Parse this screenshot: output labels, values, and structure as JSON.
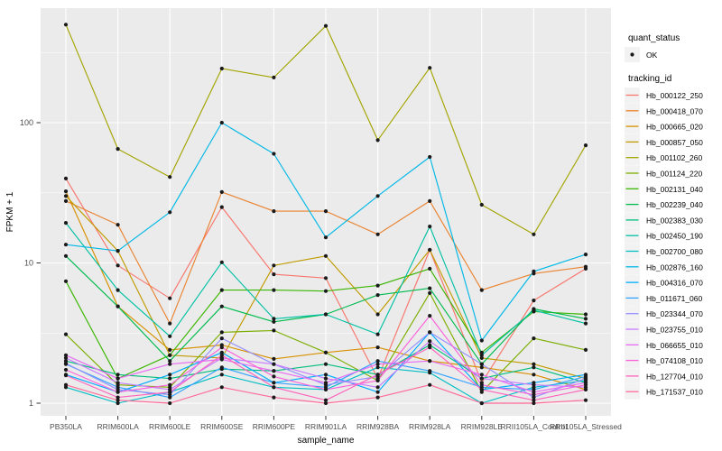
{
  "chart_data": {
    "type": "line",
    "title": "",
    "xlabel": "sample_name",
    "ylabel": "FPKM + 1",
    "y_scale": "log10",
    "y_ticks": [
      "1",
      "10",
      "100"
    ],
    "y_minor_ticks": [
      3.1623,
      31.623,
      316.23
    ],
    "ylim": [
      1,
      656
    ],
    "grid": true,
    "legend_position": "right",
    "panel_background": "#EBEBEB",
    "gridline_color": "#FFFFFF",
    "tick_label_color": "#4D4D4D",
    "axis_title_color": "#000000",
    "point_color": "#1A1A1A",
    "legend_key_background": "#F2F2F2",
    "categories": [
      "PB350LA",
      "RRIM600LA",
      "RRIM600LE",
      "RRIM600SE",
      "RRIM600PE",
      "RRIM901LA",
      "RRIM928BA",
      "RRIM928LA",
      "RRIM928LE",
      "RRII105LA_Control",
      "RRII105LA_Stressed"
    ],
    "legends": [
      {
        "title": "quant_status",
        "type": "point",
        "entries": [
          {
            "label": "OK",
            "color": "#1A1A1A"
          }
        ]
      },
      {
        "title": "tracking_id",
        "type": "line"
      }
    ],
    "series": [
      {
        "name": "Hb_000122_250",
        "color": "#F8766D",
        "values": [
          40,
          9.6,
          5.6,
          25,
          8.3,
          7.8,
          1.5,
          12.4,
          1.4,
          5.4,
          9.1
        ]
      },
      {
        "name": "Hb_000418_070",
        "color": "#EA8331",
        "values": [
          27.6,
          18.7,
          3.7,
          32,
          23.4,
          23.4,
          16,
          27.6,
          6.4,
          8.4,
          9.4
        ]
      },
      {
        "name": "Hb_000665_020",
        "color": "#D89000",
        "values": [
          32.4,
          4.9,
          2.4,
          2.6,
          2.07,
          2.3,
          2.5,
          2.0,
          1.8,
          1.6,
          1.25
        ]
      },
      {
        "name": "Hb_000857_050",
        "color": "#C09B00",
        "values": [
          30,
          12.2,
          2.2,
          2.1,
          9.6,
          11.2,
          4.3,
          12.4,
          2.1,
          1.9,
          1.5
        ]
      },
      {
        "name": "Hb_001102_260",
        "color": "#A3A500",
        "values": [
          500,
          65,
          41,
          243,
          210,
          490,
          75,
          246,
          26,
          16,
          69
        ]
      },
      {
        "name": "Hb_001124_220",
        "color": "#7CAE00",
        "values": [
          3.1,
          1.35,
          1.3,
          3.2,
          3.3,
          2.3,
          1.45,
          6.1,
          1.2,
          2.9,
          2.4
        ]
      },
      {
        "name": "Hb_002131_040",
        "color": "#39B600",
        "values": [
          7.4,
          1.5,
          2.2,
          6.4,
          6.4,
          6.3,
          6.9,
          9.1,
          2.3,
          4.5,
          4.3
        ]
      },
      {
        "name": "Hb_002239_040",
        "color": "#00BB4E",
        "values": [
          11.2,
          4.9,
          2.0,
          4.9,
          3.8,
          4.3,
          5.9,
          6.6,
          1.9,
          4.7,
          4.0
        ]
      },
      {
        "name": "Hb_002383_030",
        "color": "#00BF7D",
        "values": [
          2.0,
          1.6,
          1.5,
          1.75,
          1.7,
          1.9,
          1.6,
          2.6,
          1.5,
          1.8,
          1.4
        ]
      },
      {
        "name": "Hb_002450_190",
        "color": "#00C1A3",
        "values": [
          19.3,
          6.4,
          3.0,
          10.1,
          4.0,
          4.3,
          3.1,
          18.2,
          2.2,
          4.6,
          3.7
        ]
      },
      {
        "name": "Hb_002700_080",
        "color": "#00BFC4",
        "values": [
          1.3,
          1.0,
          1.2,
          1.6,
          1.3,
          1.25,
          1.8,
          1.65,
          1.0,
          1.3,
          1.45
        ]
      },
      {
        "name": "Hb_002876_160",
        "color": "#00B8E7",
        "values": [
          13.5,
          12.2,
          23,
          100,
          60,
          15.2,
          30,
          57,
          2.8,
          8.7,
          11.5
        ]
      },
      {
        "name": "Hb_004316_070",
        "color": "#00ACFC",
        "values": [
          1.6,
          1.2,
          1.6,
          2.3,
          1.4,
          1.6,
          1.2,
          3.2,
          1.25,
          1.4,
          1.6
        ]
      },
      {
        "name": "Hb_011671_060",
        "color": "#35A2FF",
        "values": [
          1.9,
          1.3,
          1.1,
          1.8,
          1.4,
          1.3,
          2.0,
          1.7,
          1.3,
          1.25,
          1.55
        ]
      },
      {
        "name": "Hb_023344_070",
        "color": "#9590FF",
        "values": [
          1.92,
          1.25,
          1.15,
          2.9,
          1.9,
          1.35,
          1.55,
          3.2,
          1.9,
          1.1,
          1.5
        ]
      },
      {
        "name": "Hb_023755_010",
        "color": "#C77CFF",
        "values": [
          2.1,
          1.4,
          1.25,
          2.1,
          1.9,
          1.5,
          1.3,
          2.77,
          1.5,
          1.35,
          1.3
        ]
      },
      {
        "name": "Hb_066655_010",
        "color": "#E76BF3",
        "values": [
          2.2,
          1.5,
          1.9,
          2.05,
          1.7,
          1.4,
          1.9,
          2.0,
          1.6,
          1.2,
          1.4
        ]
      },
      {
        "name": "Hb_074108_010",
        "color": "#FA62DB",
        "values": [
          1.73,
          1.2,
          1.35,
          2.5,
          1.55,
          1.25,
          1.45,
          4.2,
          1.35,
          1.15,
          1.35
        ]
      },
      {
        "name": "Hb_127704_010",
        "color": "#FF62BC",
        "values": [
          1.58,
          1.1,
          1.2,
          2.2,
          1.3,
          1.05,
          1.6,
          2.5,
          1.25,
          1.05,
          1.25
        ]
      },
      {
        "name": "Hb_171537_010",
        "color": "#FF6A98",
        "values": [
          1.35,
          1.05,
          1.0,
          1.3,
          1.1,
          1.0,
          1.1,
          1.35,
          1.0,
          1.0,
          1.05
        ]
      }
    ]
  }
}
